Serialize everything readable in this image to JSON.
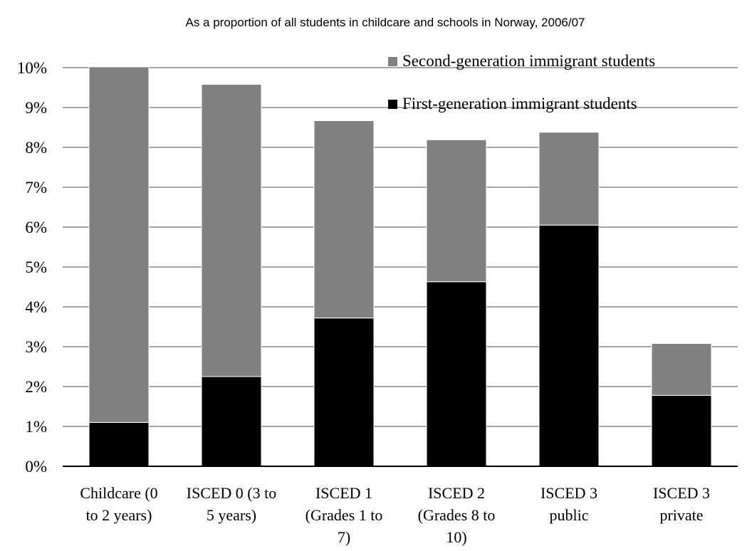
{
  "chart_data": {
    "type": "bar",
    "stacked": true,
    "title": "As a proportion of all students in childcare and schools in Norway, 2006/07",
    "categories": [
      [
        "Childcare (0",
        "to 2 years)"
      ],
      [
        "ISCED 0 (3 to",
        "5 years)"
      ],
      [
        "ISCED 1",
        "(Grades 1 to",
        "7)"
      ],
      [
        "ISCED 2",
        "(Grades 8 to",
        "10)"
      ],
      [
        "ISCED 3",
        "public"
      ],
      [
        "ISCED 3",
        "private"
      ]
    ],
    "series": [
      {
        "name": "First-generation immigrant students",
        "color": "#000000",
        "values": [
          1.1,
          2.25,
          3.72,
          4.63,
          6.05,
          1.78
        ]
      },
      {
        "name": "Second-generation immigrant students",
        "color": "#808080",
        "values": [
          8.92,
          7.33,
          4.95,
          3.56,
          2.33,
          1.3
        ]
      }
    ],
    "legend_order": [
      1,
      0
    ],
    "legend_position": "top-right",
    "ylim": [
      0,
      10
    ],
    "y_ticks": [
      "0%",
      "1%",
      "2%",
      "3%",
      "4%",
      "5%",
      "6%",
      "7%",
      "8%",
      "9%",
      "10%"
    ],
    "grid": true
  }
}
